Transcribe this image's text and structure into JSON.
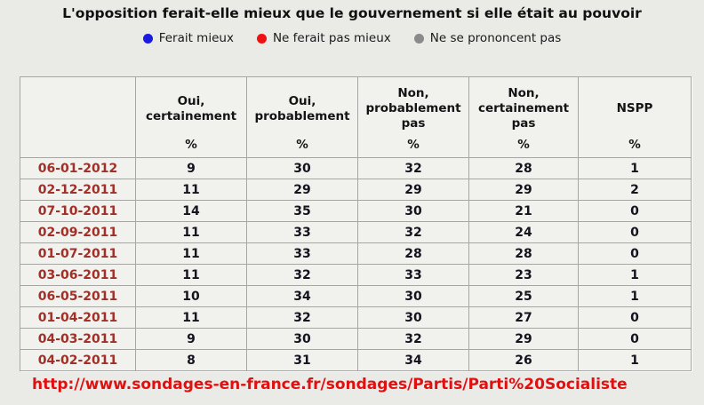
{
  "title": "L'opposition ferait-elle mieux que le gouvernement si elle était au pouvoir",
  "legend": {
    "items": [
      {
        "label": "Ferait mieux",
        "color": "#1a1ae0",
        "icon": "blue-dot-icon"
      },
      {
        "label": "Ne ferait pas mieux",
        "color": "#ee1111",
        "icon": "red-dot-icon"
      },
      {
        "label": "Ne se prononcent pas",
        "color": "#8a8a8a",
        "icon": "gray-dot-icon"
      }
    ]
  },
  "colors": {
    "page_background": "#eaeae7",
    "cell_background": "#f1f1ee",
    "cell_border": "#a6a6a6",
    "date_text": "#a03028",
    "url_text": "#e01010"
  },
  "source": {
    "url_label": "http://www.sondages-en-france.fr/sondages/Partis/Parti%20Socialiste"
  },
  "chart_data": {
    "type": "table",
    "title": "L'opposition ferait-elle mieux que le gouvernement si elle était au pouvoir",
    "columns": [
      {
        "label": "Oui,\ncertainement",
        "unit": "%"
      },
      {
        "label": "Oui,\nprobablement",
        "unit": "%"
      },
      {
        "label": "Non,\nprobablement\npas",
        "unit": "%"
      },
      {
        "label": "Non,\ncertainement\npas",
        "unit": "%"
      },
      {
        "label": "NSPP",
        "unit": "%"
      }
    ],
    "rows": [
      {
        "date": "06-01-2012",
        "values": [
          9,
          30,
          32,
          28,
          1
        ]
      },
      {
        "date": "02-12-2011",
        "values": [
          11,
          29,
          29,
          29,
          2
        ]
      },
      {
        "date": "07-10-2011",
        "values": [
          14,
          35,
          30,
          21,
          0
        ]
      },
      {
        "date": "02-09-2011",
        "values": [
          11,
          33,
          32,
          24,
          0
        ]
      },
      {
        "date": "01-07-2011",
        "values": [
          11,
          33,
          28,
          28,
          0
        ]
      },
      {
        "date": "03-06-2011",
        "values": [
          11,
          32,
          33,
          23,
          1
        ]
      },
      {
        "date": "06-05-2011",
        "values": [
          10,
          34,
          30,
          25,
          1
        ]
      },
      {
        "date": "01-04-2011",
        "values": [
          11,
          32,
          30,
          27,
          0
        ]
      },
      {
        "date": "04-03-2011",
        "values": [
          9,
          30,
          32,
          29,
          0
        ]
      },
      {
        "date": "04-02-2011",
        "values": [
          8,
          31,
          34,
          26,
          1
        ]
      }
    ],
    "legend_entries": [
      "Ferait mieux",
      "Ne ferait pas mieux",
      "Ne se prononcent pas"
    ]
  }
}
